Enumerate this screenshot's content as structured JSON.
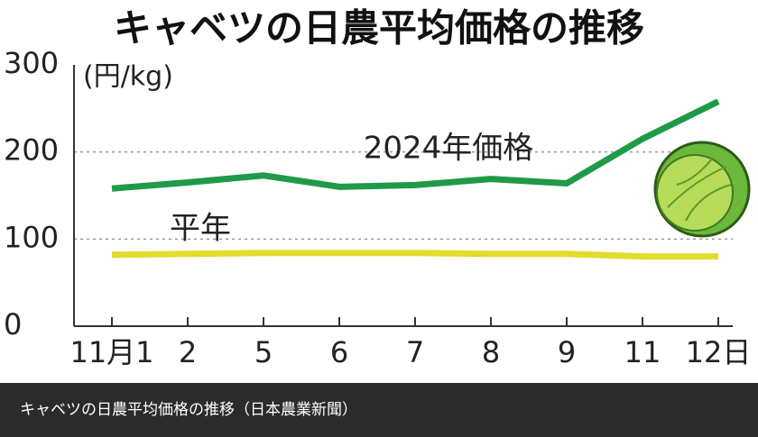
{
  "chart_data": {
    "type": "line",
    "title": "キャベツの日農平均価格の推移",
    "y_label": "(円/kg)",
    "categories": [
      "11月1",
      "2",
      "5",
      "6",
      "7",
      "8",
      "9",
      "11",
      "12日"
    ],
    "series": [
      {
        "name": "2024年価格",
        "color": "#1f9a48",
        "values": [
          158,
          165,
          173,
          160,
          162,
          169,
          164,
          215,
          258
        ]
      },
      {
        "name": "平年",
        "color": "#e2dc2c",
        "values": [
          82,
          83,
          84,
          84,
          84,
          83,
          83,
          80,
          80
        ]
      }
    ],
    "ylim": [
      0,
      300
    ],
    "yticks": [
      0,
      100,
      200,
      300
    ],
    "grid": true
  },
  "caption": "キャベツの日農平均価格の推移（日本農業新聞）"
}
